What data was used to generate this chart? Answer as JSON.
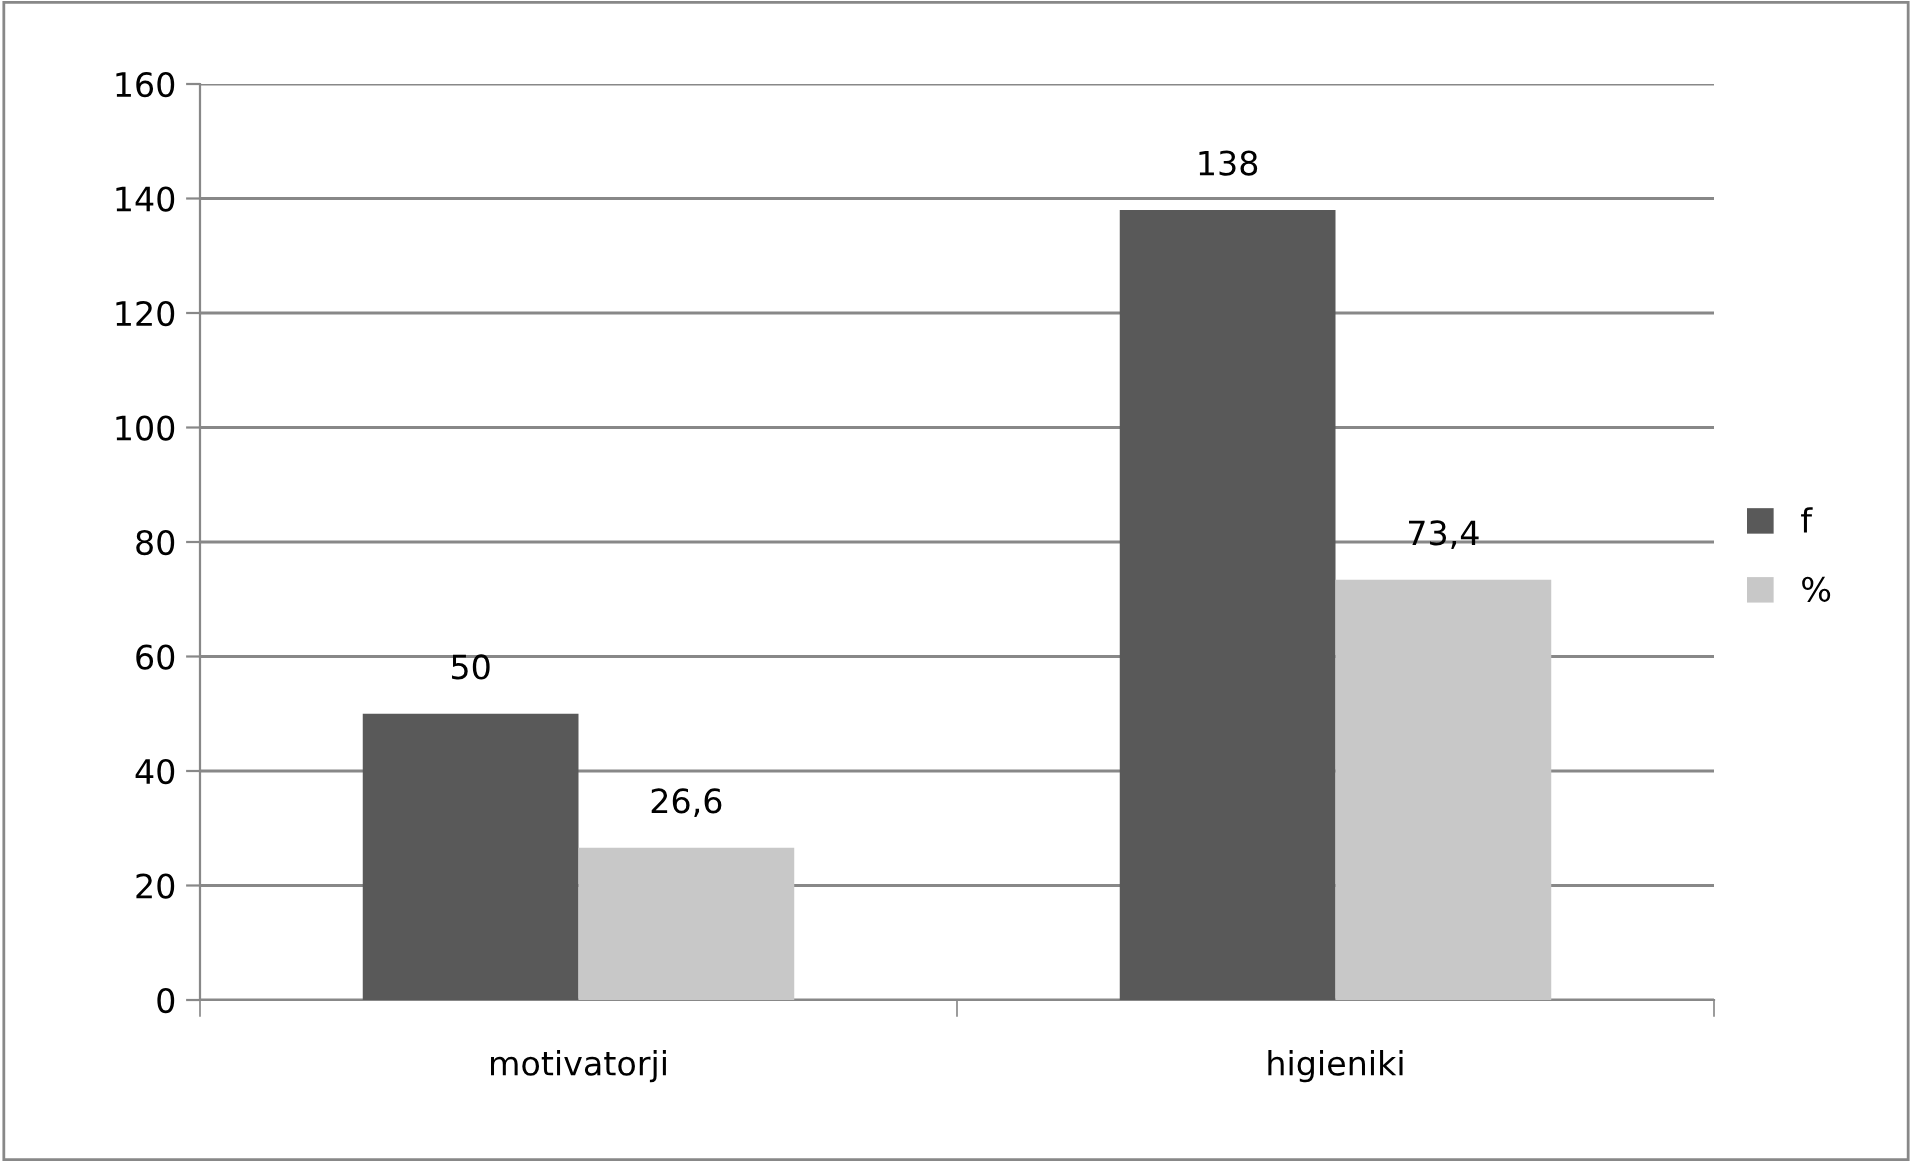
{
  "chart_data": {
    "type": "bar",
    "categories": [
      "motivatorji",
      "higieniki"
    ],
    "series": [
      {
        "name": "f",
        "color": "#595959",
        "values": [
          50,
          138
        ],
        "value_labels": [
          "50",
          "138"
        ]
      },
      {
        "name": "%",
        "color": "#c8c8c8",
        "values": [
          26.6,
          73.4
        ],
        "value_labels": [
          "26,6",
          "73,4"
        ]
      }
    ],
    "ylim": [
      0,
      160
    ],
    "yticks": [
      0,
      20,
      40,
      60,
      80,
      100,
      120,
      140,
      160
    ],
    "grid": "y",
    "legend": "right"
  }
}
